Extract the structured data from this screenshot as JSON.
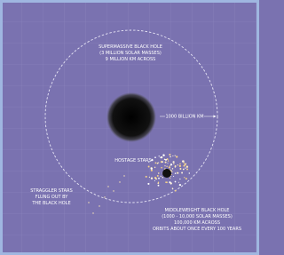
{
  "supermassive": {
    "lines": [
      "SUPERMASSIVE BLACK HOLE",
      "(3 MILLION SOLAR MASSES)",
      "9 MILLION KM ACROSS"
    ]
  },
  "distance": {
    "label": "1000 BILLION KM"
  },
  "hostage": {
    "label": "HOSTAGE STARS"
  },
  "straggler": {
    "lines": [
      "STRAGGLER STARS",
      "FLUNG OUT BY",
      "THE BLACK HOLE"
    ]
  },
  "middleweight": {
    "lines": [
      "MIDDLEWEIGHT BLACK HOLE",
      "(1000 - 10,000 SOLAR MASSES)",
      "100,000 KM ACROSS",
      "ORBITS ABOUT ONCE EVERY 100 YEARS"
    ]
  }
}
